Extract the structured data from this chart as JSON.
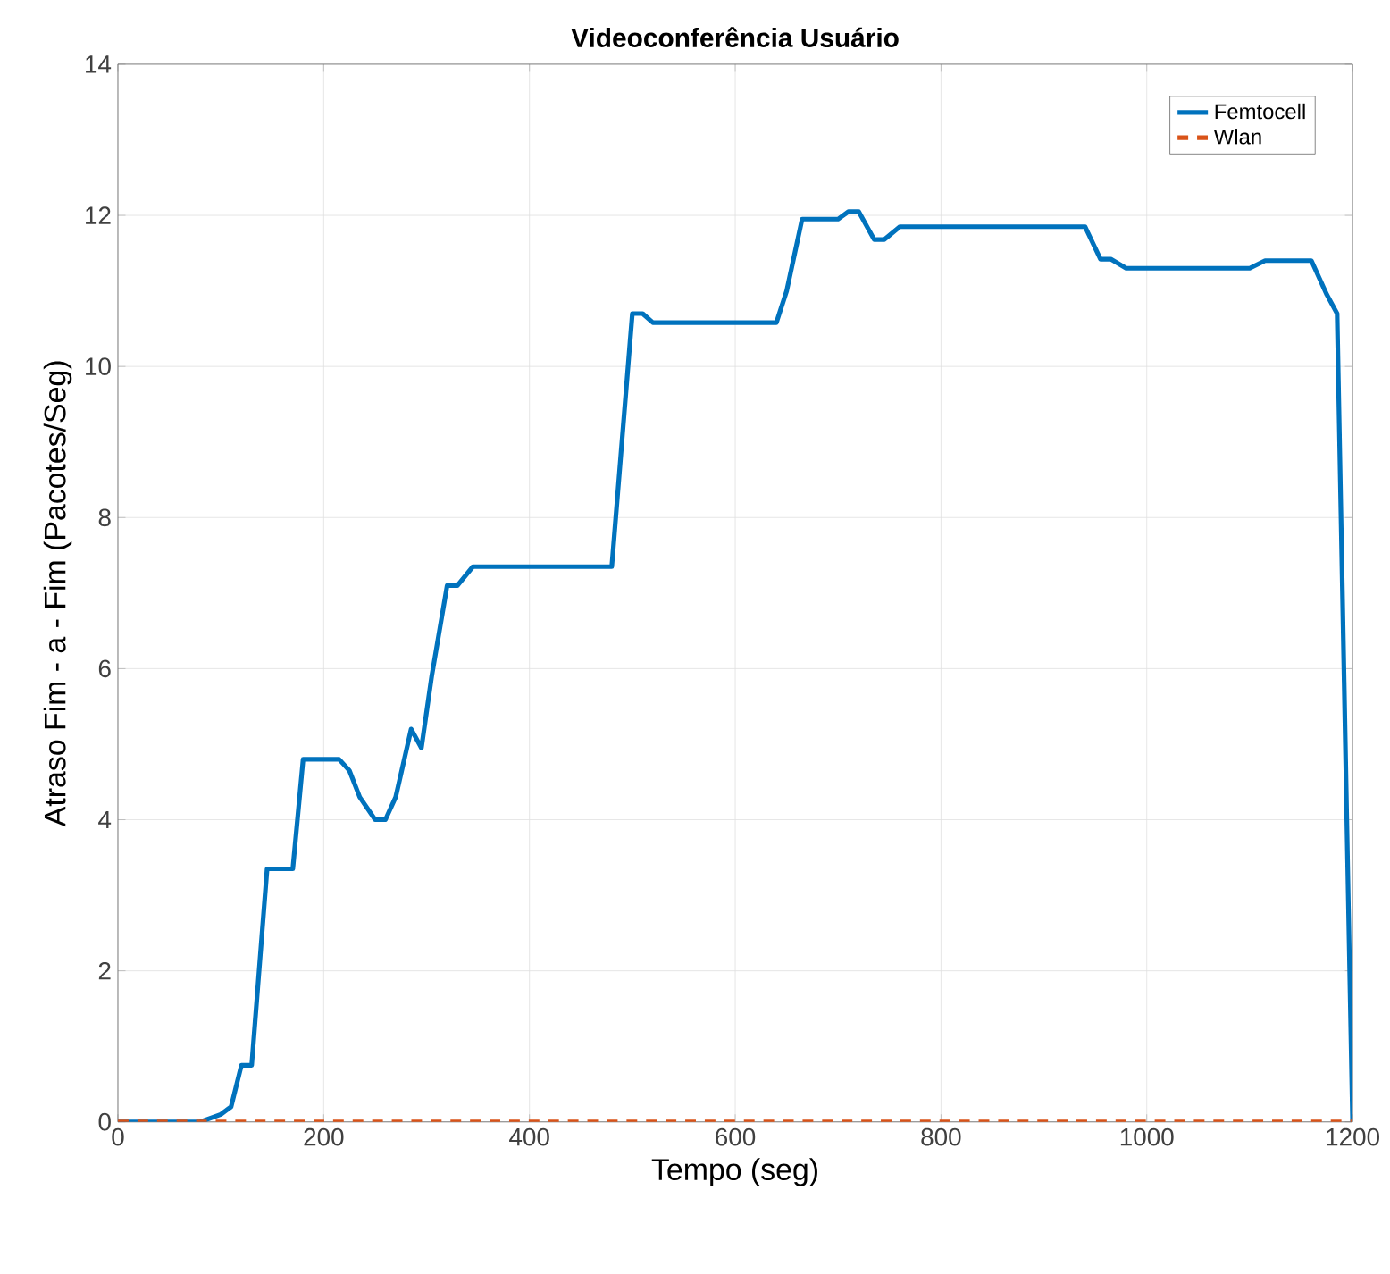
{
  "chart_data": {
    "type": "line",
    "title": "Videoconferência Usuário",
    "xlabel": "Tempo (seg)",
    "ylabel": "Atraso Fim - a - Fim (Pacotes/Seg)",
    "xlim": [
      0,
      1200
    ],
    "ylim": [
      0,
      14
    ],
    "xticks": [
      0,
      200,
      400,
      600,
      800,
      1000,
      1200
    ],
    "yticks": [
      0,
      2,
      4,
      6,
      8,
      10,
      12,
      14
    ],
    "grid": true,
    "legend": "top right",
    "series": [
      {
        "name": "Femtocell",
        "color": "#0072bd",
        "line_style": "solid",
        "x": [
          0,
          80,
          100,
          110,
          120,
          130,
          145,
          170,
          180,
          215,
          225,
          235,
          250,
          260,
          270,
          285,
          295,
          305,
          320,
          330,
          345,
          480,
          500,
          510,
          520,
          640,
          650,
          665,
          700,
          710,
          720,
          735,
          745,
          760,
          940,
          955,
          965,
          980,
          1100,
          1115,
          1160,
          1175,
          1185,
          1200
        ],
        "values": [
          0,
          0,
          0.1,
          0.2,
          0.75,
          0.75,
          3.35,
          3.35,
          4.8,
          4.8,
          4.65,
          4.3,
          4.0,
          4.0,
          4.3,
          5.2,
          4.95,
          5.9,
          7.1,
          7.1,
          7.35,
          7.35,
          10.7,
          10.7,
          10.58,
          10.58,
          11.0,
          11.95,
          11.95,
          12.05,
          12.05,
          11.68,
          11.68,
          11.85,
          11.85,
          11.42,
          11.42,
          11.3,
          11.3,
          11.4,
          11.4,
          10.95,
          10.7,
          0
        ]
      },
      {
        "name": "Wlan",
        "color": "#d95319",
        "line_style": "dashed",
        "x": [
          0,
          1200
        ],
        "values": [
          0,
          0
        ]
      }
    ]
  }
}
